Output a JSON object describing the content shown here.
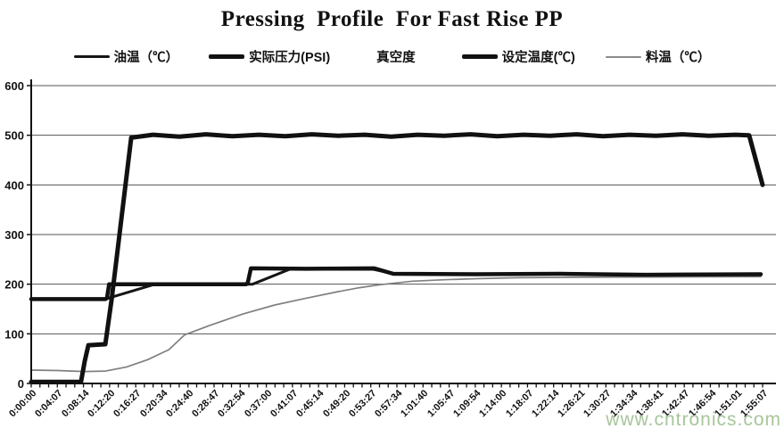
{
  "title": "Pressing  Profile  For Fast Rise PP",
  "watermark": "www.cntronics.com",
  "chart_data": {
    "type": "line",
    "title": "Pressing  Profile  For Fast Rise PP",
    "legend_position": "top",
    "grid": "horizontal",
    "x_axis": {
      "max_seconds": 6907,
      "minor_ticks_per_label": 3,
      "labels": [
        "0:00:00",
        "0:04:07",
        "0:08:14",
        "0:12:20",
        "0:16:27",
        "0:20:34",
        "0:24:40",
        "0:28:47",
        "0:32:54",
        "0:37:00",
        "0:41:07",
        "0:45:14",
        "0:49:20",
        "0:53:27",
        "0:57:34",
        "1:01:40",
        "1:05:47",
        "1:09:54",
        "1:14:00",
        "1:18:07",
        "1:22:14",
        "1:26:21",
        "1:30:27",
        "1:34:34",
        "1:38:41",
        "1:42:47",
        "1:46:54",
        "1:51:01",
        "1:55:07"
      ]
    },
    "y_axis": {
      "min": 0,
      "max": 600,
      "tick_step": 100,
      "ticks": [
        "600",
        "500",
        "400",
        "300",
        "200",
        "100",
        "0"
      ]
    },
    "series": [
      {
        "name": "油温（℃）",
        "color": "#151515",
        "width": 3,
        "show_legend_line": true,
        "points": [
          [
            0,
            170
          ],
          [
            700,
            170
          ],
          [
            1170,
            200
          ],
          [
            2090,
            200
          ],
          [
            2440,
            230
          ],
          [
            3230,
            230
          ],
          [
            3430,
            221
          ],
          [
            4500,
            220
          ],
          [
            6890,
            220
          ]
        ]
      },
      {
        "name": "实际压力(PSI)",
        "color": "#111111",
        "width": 5,
        "show_legend_line": true,
        "points": [
          [
            0,
            3
          ],
          [
            470,
            3
          ],
          [
            505,
            45
          ],
          [
            540,
            77
          ],
          [
            700,
            79
          ],
          [
            760,
            170
          ],
          [
            944,
            495
          ],
          [
            1150,
            501
          ],
          [
            1400,
            497
          ],
          [
            1650,
            502
          ],
          [
            1900,
            498
          ],
          [
            2150,
            501
          ],
          [
            2400,
            498
          ],
          [
            2650,
            502
          ],
          [
            2900,
            499
          ],
          [
            3150,
            501
          ],
          [
            3400,
            497
          ],
          [
            3650,
            501
          ],
          [
            3900,
            499
          ],
          [
            4150,
            502
          ],
          [
            4400,
            498
          ],
          [
            4650,
            501
          ],
          [
            4900,
            499
          ],
          [
            5150,
            502
          ],
          [
            5400,
            498
          ],
          [
            5650,
            501
          ],
          [
            5900,
            499
          ],
          [
            6150,
            502
          ],
          [
            6400,
            499
          ],
          [
            6650,
            501
          ],
          [
            6780,
            500
          ],
          [
            6907,
            400
          ]
        ]
      },
      {
        "name": "真空度",
        "color": "#111111",
        "width": 1,
        "show_legend_line": false,
        "points": [
          [
            0,
            0
          ],
          [
            6907,
            0
          ]
        ]
      },
      {
        "name": "设定温度(℃)",
        "color": "#111111",
        "width": 4.5,
        "show_legend_line": true,
        "points": [
          [
            0,
            170
          ],
          [
            700,
            170
          ],
          [
            715,
            172
          ],
          [
            735,
            200
          ],
          [
            2030,
            200
          ],
          [
            2045,
            203
          ],
          [
            2075,
            232
          ],
          [
            2600,
            231
          ],
          [
            3240,
            232
          ],
          [
            3420,
            221
          ],
          [
            4200,
            220
          ],
          [
            5000,
            221
          ],
          [
            5800,
            219
          ],
          [
            6890,
            220
          ]
        ]
      },
      {
        "name": "料温（℃）",
        "color": "#808080",
        "width": 1.7,
        "show_legend_line": true,
        "points": [
          [
            0,
            27
          ],
          [
            250,
            26
          ],
          [
            500,
            24
          ],
          [
            700,
            25
          ],
          [
            900,
            33
          ],
          [
            1100,
            48
          ],
          [
            1300,
            68
          ],
          [
            1450,
            98
          ],
          [
            1700,
            118
          ],
          [
            2000,
            140
          ],
          [
            2300,
            158
          ],
          [
            2600,
            172
          ],
          [
            2900,
            185
          ],
          [
            3100,
            193
          ],
          [
            3300,
            199
          ],
          [
            3600,
            206
          ],
          [
            3900,
            209
          ],
          [
            4200,
            211
          ],
          [
            4600,
            213
          ],
          [
            5200,
            214
          ],
          [
            6890,
            215
          ]
        ]
      }
    ]
  },
  "legend_sample_color_material": "#8a8a8a"
}
